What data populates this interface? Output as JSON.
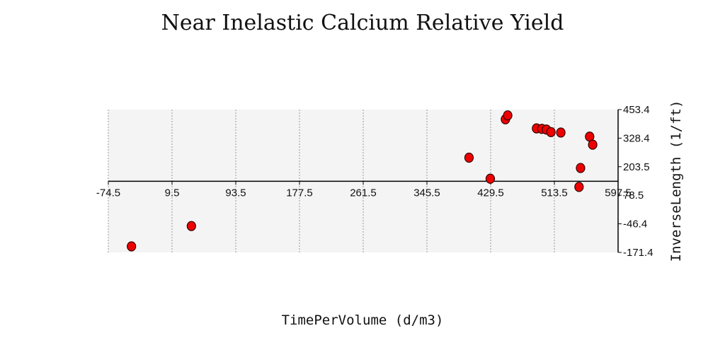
{
  "chart_data": {
    "type": "scatter",
    "title": "Near Inelastic Calcium Relative Yield",
    "xlabel": "TimePerVolume (d/m3)",
    "ylabel": "InverseLength (1/ft)",
    "xlim": [
      -74.5,
      597.5
    ],
    "ylim": [
      -171.4,
      453.4
    ],
    "x_ticks": [
      "-74.5",
      "9.5",
      "93.5",
      "177.5",
      "261.5",
      "345.5",
      "429.5",
      "513.5",
      "597.5"
    ],
    "y_ticks": [
      "453.4",
      "328.4",
      "203.5",
      "78.5",
      "-46.4",
      "-171.4"
    ],
    "x_axis_at_y": 140,
    "grid": true,
    "point_color": "#ee0000",
    "points": [
      {
        "x": -44,
        "y": -145
      },
      {
        "x": 35,
        "y": -56
      },
      {
        "x": 401,
        "y": 243
      },
      {
        "x": 429,
        "y": 151
      },
      {
        "x": 449,
        "y": 411
      },
      {
        "x": 452,
        "y": 428
      },
      {
        "x": 490,
        "y": 371
      },
      {
        "x": 497,
        "y": 369
      },
      {
        "x": 503,
        "y": 366
      },
      {
        "x": 509,
        "y": 355
      },
      {
        "x": 522,
        "y": 353
      },
      {
        "x": 546,
        "y": 115
      },
      {
        "x": 548,
        "y": 198
      },
      {
        "x": 560,
        "y": 335
      },
      {
        "x": 564,
        "y": 300
      }
    ]
  }
}
